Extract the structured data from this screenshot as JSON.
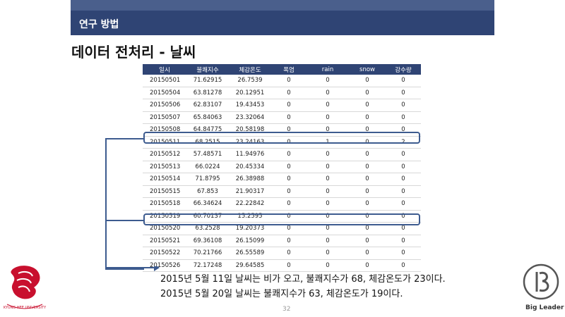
{
  "header": {
    "section_title": "연구 방법"
  },
  "slide": {
    "title": "데이터 전처리 - 날씨"
  },
  "table": {
    "columns": [
      "일시",
      "불쾌지수",
      "체감온도",
      "폭염",
      "rain",
      "snow",
      "강수량"
    ],
    "rows": [
      [
        "20150501",
        "71.62915",
        "26.7539",
        "0",
        "0",
        "0",
        "0"
      ],
      [
        "20150504",
        "63.81278",
        "20.12951",
        "0",
        "0",
        "0",
        "0"
      ],
      [
        "20150506",
        "62.83107",
        "19.43453",
        "0",
        "0",
        "0",
        "0"
      ],
      [
        "20150507",
        "65.84063",
        "23.32064",
        "0",
        "0",
        "0",
        "0"
      ],
      [
        "20150508",
        "64.84775",
        "20.58198",
        "0",
        "0",
        "0",
        "0"
      ],
      [
        "20150511",
        "68.2515",
        "23.24163",
        "0",
        "1",
        "0",
        "2"
      ],
      [
        "20150512",
        "57.48571",
        "11.94976",
        "0",
        "0",
        "0",
        "0"
      ],
      [
        "20150513",
        "66.0224",
        "20.45334",
        "0",
        "0",
        "0",
        "0"
      ],
      [
        "20150514",
        "71.8795",
        "26.38988",
        "0",
        "0",
        "0",
        "0"
      ],
      [
        "20150515",
        "67.853",
        "21.90317",
        "0",
        "0",
        "0",
        "0"
      ],
      [
        "20150518",
        "66.34624",
        "22.22842",
        "0",
        "0",
        "0",
        "0"
      ],
      [
        "20150519",
        "60.70137",
        "15.2595",
        "0",
        "0",
        "0",
        "0"
      ],
      [
        "20150520",
        "63.2528",
        "19.20373",
        "0",
        "0",
        "0",
        "0"
      ],
      [
        "20150521",
        "69.36108",
        "26.15099",
        "0",
        "0",
        "0",
        "0"
      ],
      [
        "20150522",
        "70.21766",
        "26.55589",
        "0",
        "0",
        "0",
        "0"
      ],
      [
        "20150526",
        "72.17248",
        "29.64585",
        "0",
        "0",
        "0",
        "0"
      ]
    ],
    "highlighted_rows": [
      5,
      12
    ]
  },
  "notes": [
    "2015년 5월 11일 날씨는 비가 오고, 불쾌지수가 68, 체감온도가 23이다.",
    "2015년 5월 20일 날씨는 불쾌지수가 63, 체감온도가 19이다."
  ],
  "footer": {
    "page_number": "32",
    "university_logo_text": "KYUNG HEE UNIVERSITY",
    "team_name": "Big Leader"
  },
  "colors": {
    "header_bg": "#2f4474",
    "header_stripe": "#4a5f8c",
    "highlight_border": "#3d5b8f",
    "logo_red": "#c8102e"
  }
}
